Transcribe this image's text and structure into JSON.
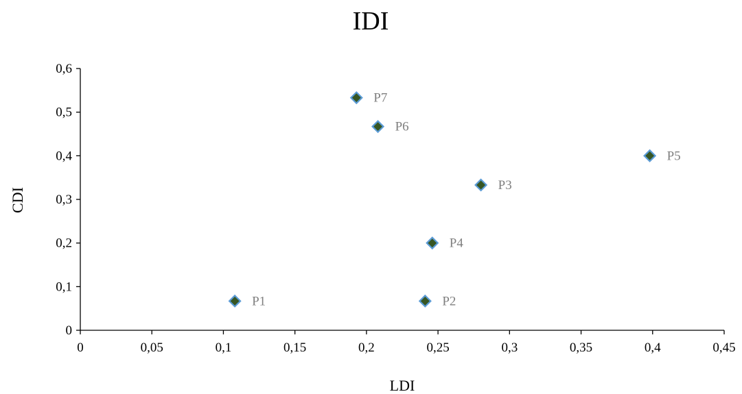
{
  "chart_data": {
    "type": "scatter",
    "title": "IDI",
    "xlabel": "LDI",
    "ylabel": "CDI",
    "xlim": [
      0,
      0.45
    ],
    "ylim": [
      0,
      0.6
    ],
    "x_ticks": [
      "0",
      "0,05",
      "0,1",
      "0,15",
      "0,2",
      "0,25",
      "0,3",
      "0,35",
      "0,4",
      "0,45"
    ],
    "y_ticks": [
      "0",
      "0,1",
      "0,2",
      "0,3",
      "0,4",
      "0,5",
      "0,6"
    ],
    "grid": false,
    "marker_fill": "#375623",
    "marker_edge": "#5b9bd5",
    "label_color": "#7f7f7f",
    "points": [
      {
        "label": "P1",
        "x": 0.108,
        "y": 0.067
      },
      {
        "label": "P2",
        "x": 0.241,
        "y": 0.067
      },
      {
        "label": "P3",
        "x": 0.28,
        "y": 0.333
      },
      {
        "label": "P4",
        "x": 0.246,
        "y": 0.2
      },
      {
        "label": "P5",
        "x": 0.398,
        "y": 0.4
      },
      {
        "label": "P6",
        "x": 0.208,
        "y": 0.467
      },
      {
        "label": "P7",
        "x": 0.193,
        "y": 0.533
      }
    ]
  }
}
